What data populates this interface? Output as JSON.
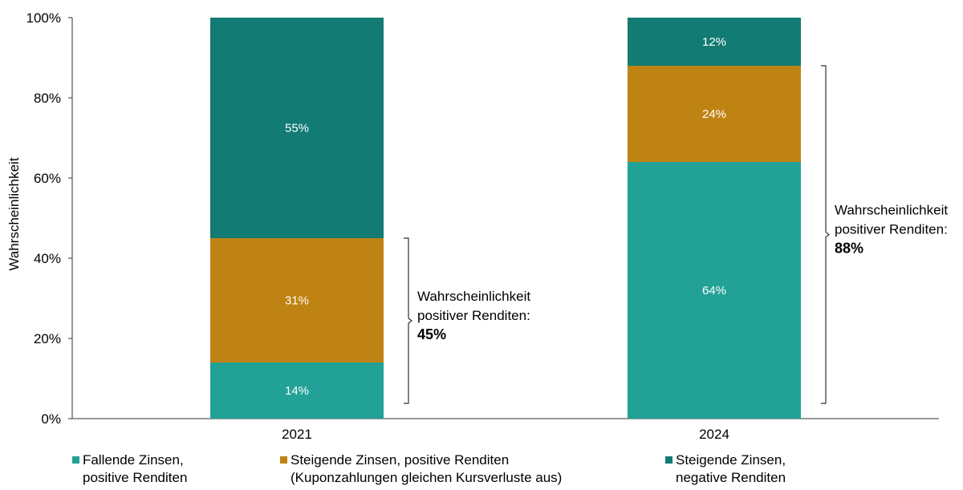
{
  "chart_data": {
    "type": "bar",
    "stacked": true,
    "ylabel": "Wahrscheinlichkeit",
    "xlabel": "",
    "ylim": [
      0,
      100
    ],
    "yticks": [
      "0%",
      "20%",
      "40%",
      "60%",
      "80%",
      "100%"
    ],
    "categories": [
      "2021",
      "2024"
    ],
    "series": [
      {
        "name": "Fallende Zinsen,\npositive Renditen",
        "color": "#22a197",
        "values": [
          14,
          64
        ],
        "labels": [
          "14%",
          "64%"
        ]
      },
      {
        "name": "Steigende Zinsen, positive Renditen\n(Kuponzahlungen gleichen Kursverluste aus)",
        "color": "#bf8313",
        "values": [
          31,
          24
        ],
        "labels": [
          "31%",
          "24%"
        ]
      },
      {
        "name": "Steigende Zinsen,\nnegative Renditen",
        "color": "#127b73",
        "values": [
          55,
          12
        ],
        "labels": [
          "55%",
          "12%"
        ]
      }
    ],
    "annotations": [
      {
        "category": "2021",
        "text_lines": [
          "Wahrscheinlichkeit",
          "positiver Renditen:"
        ],
        "value_text": "45%",
        "range": [
          0,
          45
        ]
      },
      {
        "category": "2024",
        "text_lines": [
          "Wahrscheinlichkeit",
          "positiver Renditen:"
        ],
        "value_text": "88%",
        "range": [
          0,
          88
        ]
      }
    ],
    "grid": false,
    "legend_position": "bottom"
  }
}
